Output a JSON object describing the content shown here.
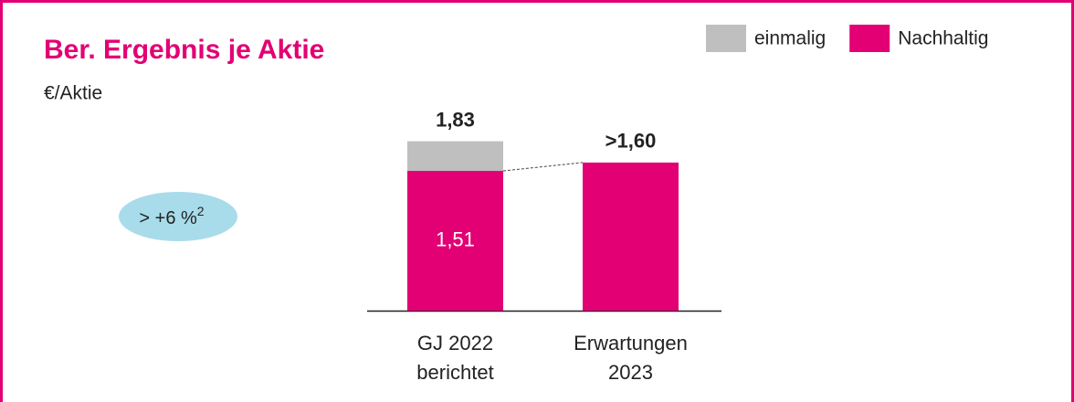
{
  "chart_data": {
    "type": "stacked_bar",
    "title": "Ber. Ergebnis je Aktie",
    "subtitle": "€/Aktie",
    "categories": [
      "GJ 2022\nberichtet",
      "Erwartungen\n2023"
    ],
    "series": [
      {
        "name": "einmalig",
        "color": "#bfbfbf",
        "values": [
          0.32,
          null
        ]
      },
      {
        "name": "Nachhaltig",
        "color": "#e20074",
        "values": [
          1.51,
          1.6
        ],
        "value_labels": [
          "1,51",
          null
        ]
      }
    ],
    "total_labels": [
      "1,83",
      ">1,60"
    ],
    "annotation": "> +6 %",
    "annotation_sup": "2",
    "legend": "top-right"
  }
}
